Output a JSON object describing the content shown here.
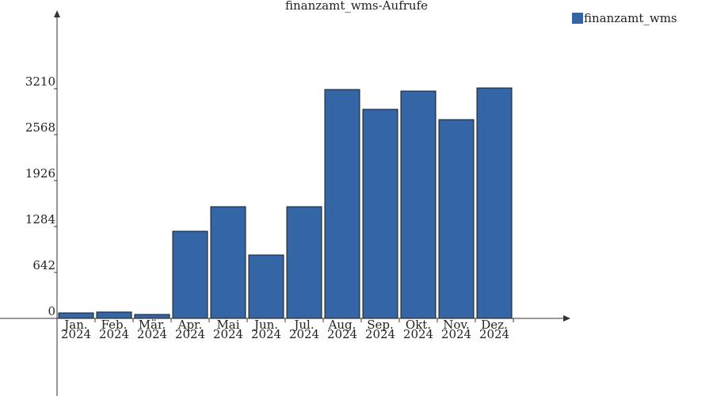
{
  "chart_data": {
    "type": "bar",
    "title": "finanzamt_wms-Aufrufe",
    "categories": [
      "Jan. 2024",
      "Feb. 2024",
      "Mär. 2024",
      "Apr. 2024",
      "Mai 2024",
      "Jun. 2024",
      "Jul. 2024",
      "Aug. 2024",
      "Sep. 2024",
      "Okt. 2024",
      "Nov. 2024",
      "Dez. 2024"
    ],
    "series": [
      {
        "name": "finanzamt_wms",
        "color": "#3465a4",
        "values": [
          77,
          89,
          55,
          1218,
          1561,
          886,
          1561,
          3199,
          2922,
          3177,
          2778,
          3221
        ]
      }
    ],
    "ylim": [
      0,
      4284
    ],
    "yticks": [
      0,
      642,
      1284,
      1926,
      2568,
      3210
    ],
    "legend": "top-right"
  }
}
